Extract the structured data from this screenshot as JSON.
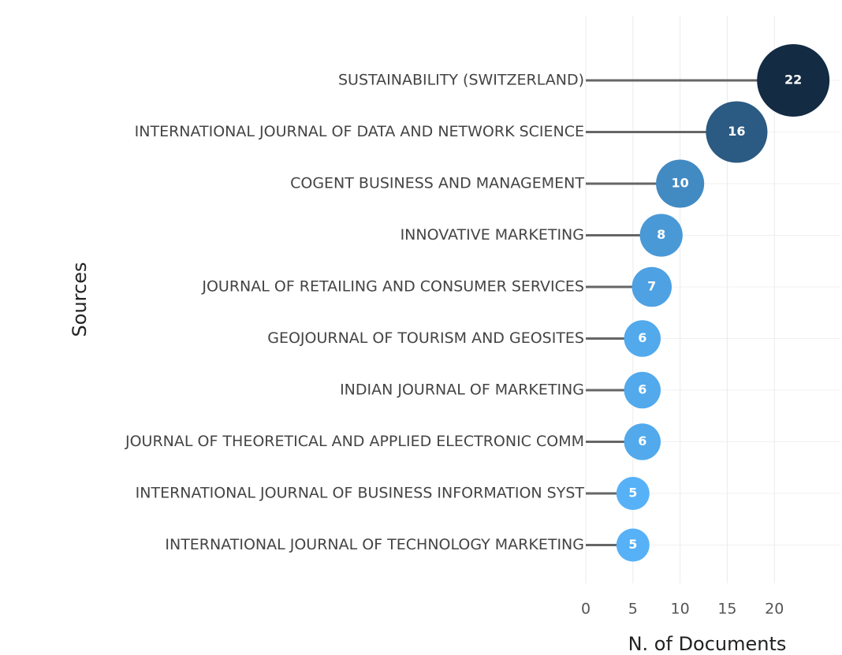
{
  "chart_data": {
    "type": "lollipop",
    "categories": [
      "SUSTAINABILITY (SWITZERLAND)",
      "INTERNATIONAL JOURNAL OF DATA AND NETWORK SCIENCE",
      "COGENT BUSINESS AND MANAGEMENT",
      "INNOVATIVE MARKETING",
      "JOURNAL OF RETAILING AND CONSUMER SERVICES",
      "GEOJOURNAL OF TOURISM AND GEOSITES",
      "INDIAN JOURNAL OF MARKETING",
      "JOURNAL OF THEORETICAL AND APPLIED ELECTRONIC COMM",
      "INTERNATIONAL JOURNAL OF BUSINESS INFORMATION SYST",
      "INTERNATIONAL JOURNAL OF TECHNOLOGY MARKETING"
    ],
    "values": [
      22,
      16,
      10,
      8,
      7,
      6,
      6,
      6,
      5,
      5
    ],
    "xlabel": "N. of Documents",
    "ylabel": "Sources",
    "xlim": [
      0,
      27
    ],
    "xticks": [
      0,
      5,
      10,
      15,
      20
    ],
    "color_low": "#56b1f7",
    "color_high": "#132b43",
    "stem_color": "#666666",
    "grid": true
  }
}
